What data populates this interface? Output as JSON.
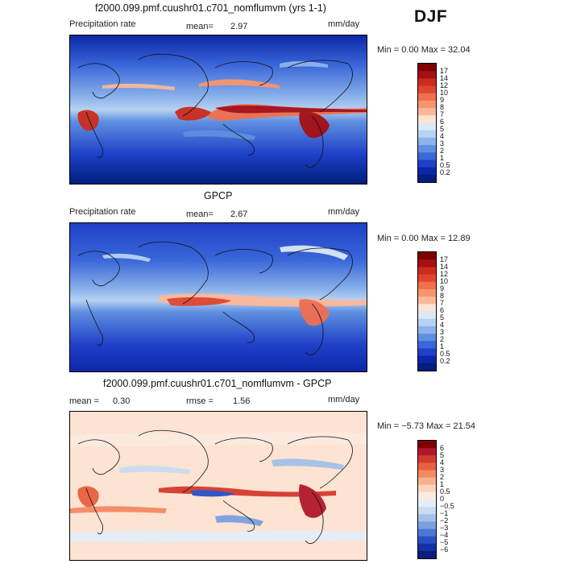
{
  "season": "DJF",
  "panels": [
    {
      "title": "f2000.099.pmf.cuushr01.c701_nomflumvm (yrs 1-1)",
      "left_label": "Precipitation rate",
      "stat1_label": "mean=",
      "stat1_value": "2.97",
      "units": "mm/day",
      "range_text": "Min =    0.00 Max =   32.04",
      "colorbar_labels": [
        "17",
        "14",
        "12",
        "10",
        "9",
        "8",
        "7",
        "6",
        "5",
        "4",
        "3",
        "2",
        "1",
        "0.5",
        "0.2"
      ]
    },
    {
      "title": "GPCP",
      "left_label": "Precipitation rate",
      "stat1_label": "mean=",
      "stat1_value": "2.67",
      "units": "mm/day",
      "range_text": "Min =    0.00 Max =   12.89",
      "colorbar_labels": [
        "17",
        "14",
        "12",
        "10",
        "9",
        "8",
        "7",
        "6",
        "5",
        "4",
        "3",
        "2",
        "1",
        "0.5",
        "0.2"
      ]
    },
    {
      "title": "f2000.099.pmf.cuushr01.c701_nomflumvm - GPCP",
      "left_label": "mean =",
      "left_value": "0.30",
      "stat1_label": "rmse =",
      "stat1_value": "1.56",
      "units": "mm/day",
      "range_text": "Min =  −5.73 Max =   21.54",
      "colorbar_labels": [
        "6",
        "5",
        "4",
        "3",
        "2",
        "1",
        "0.5",
        "0",
        "−0.5",
        "−1",
        "−2",
        "−3",
        "−4",
        "−5",
        "−6"
      ]
    }
  ],
  "colors": {
    "precip_scale": [
      "#7f0000",
      "#a50f15",
      "#cb2c1e",
      "#e0462e",
      "#ef6f4f",
      "#f7956f",
      "#fbb89a",
      "#fde3d2",
      "#dbe9f6",
      "#b7d2f2",
      "#8cb3ea",
      "#5f8fe0",
      "#3a67d9",
      "#1f40c8",
      "#0d26a8",
      "#001f7e"
    ],
    "diff_scale": [
      "#7f0000",
      "#b2182b",
      "#d33b2f",
      "#e8613f",
      "#f48a63",
      "#f9b08e",
      "#fcd5bf",
      "#fdebe0",
      "#e5eef8",
      "#c9dcf2",
      "#a3c1ea",
      "#7aa0e0",
      "#4f77d3",
      "#2a4fc4",
      "#1530a6",
      "#0a1d7a"
    ]
  },
  "chart_data": [
    {
      "type": "heatmap",
      "title": "f2000.099.pmf.cuushr01.c701_nomflumvm (yrs 1-1)",
      "field": "Precipitation rate",
      "units": "mm/day",
      "mean": 2.97,
      "min": 0.0,
      "max": 32.04,
      "contour_levels": [
        0.2,
        0.5,
        1,
        2,
        3,
        4,
        5,
        6,
        7,
        8,
        9,
        10,
        12,
        14,
        17
      ]
    },
    {
      "type": "heatmap",
      "title": "GPCP",
      "field": "Precipitation rate",
      "units": "mm/day",
      "mean": 2.67,
      "min": 0.0,
      "max": 12.89,
      "contour_levels": [
        0.2,
        0.5,
        1,
        2,
        3,
        4,
        5,
        6,
        7,
        8,
        9,
        10,
        12,
        14,
        17
      ]
    },
    {
      "type": "heatmap",
      "title": "f2000.099.pmf.cuushr01.c701_nomflumvm - GPCP",
      "units": "mm/day",
      "mean": 0.3,
      "rmse": 1.56,
      "min": -5.73,
      "max": 21.54,
      "contour_levels": [
        -6,
        -5,
        -4,
        -3,
        -2,
        -1,
        -0.5,
        0,
        0.5,
        1,
        2,
        3,
        4,
        5,
        6
      ]
    }
  ]
}
